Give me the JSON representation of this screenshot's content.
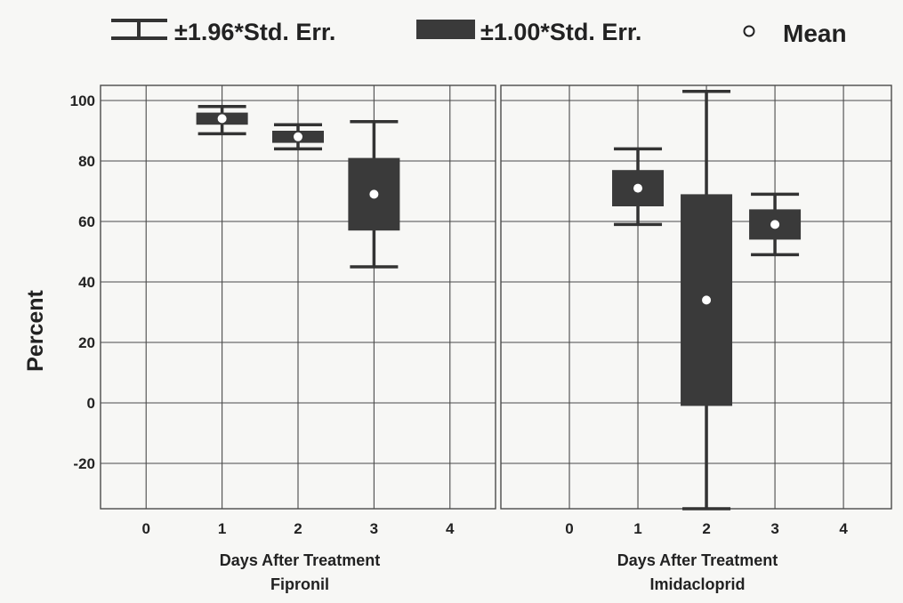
{
  "legend": {
    "whisker_label": "±1.96*Std. Err.",
    "box_label": "±1.00*Std. Err.",
    "mean_label": "Mean"
  },
  "colors": {
    "box_fill": "#3a3a3a",
    "whisker": "#333333",
    "grid": "#4a4a4a",
    "mean_marker": "#ffffff",
    "background": "#f7f7f5"
  },
  "chart_data": {
    "type": "box",
    "ylabel": "Percent",
    "ylim": [
      -35,
      105
    ],
    "yticks": [
      "100",
      "80",
      "60",
      "40",
      "20",
      "0",
      "-20"
    ],
    "grid": true,
    "legend_position": "top",
    "panels": [
      {
        "xlabel": "Days After Treatment",
        "group_label": "Fipronil",
        "xticks": [
          "0",
          "1",
          "2",
          "3",
          "4"
        ],
        "xlim": [
          -0.6,
          4.6
        ],
        "boxes": [
          {
            "x": 1,
            "mean": 94,
            "box_low": 92,
            "box_high": 96,
            "whisker_low": 89,
            "whisker_high": 98
          },
          {
            "x": 2,
            "mean": 88,
            "box_low": 86,
            "box_high": 90,
            "whisker_low": 84,
            "whisker_high": 92
          },
          {
            "x": 3,
            "mean": 69,
            "box_low": 57,
            "box_high": 81,
            "whisker_low": 45,
            "whisker_high": 93
          }
        ]
      },
      {
        "xlabel": "Days After Treatment",
        "group_label": "Imidacloprid",
        "xticks": [
          "0",
          "1",
          "2",
          "3",
          "4"
        ],
        "xlim": [
          -1.0,
          4.7
        ],
        "boxes": [
          {
            "x": 1,
            "mean": 71,
            "box_low": 65,
            "box_high": 77,
            "whisker_low": 59,
            "whisker_high": 84
          },
          {
            "x": 2,
            "mean": 34,
            "box_low": -1,
            "box_high": 69,
            "whisker_low": -35,
            "whisker_high": 103
          },
          {
            "x": 3,
            "mean": 59,
            "box_low": 54,
            "box_high": 64,
            "whisker_low": 49,
            "whisker_high": 69
          }
        ]
      }
    ]
  }
}
